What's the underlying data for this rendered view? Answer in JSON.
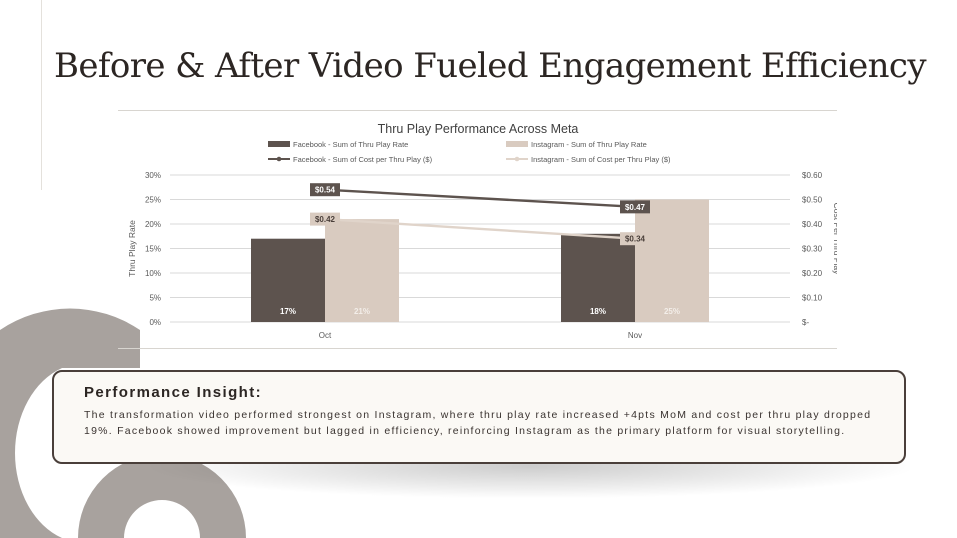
{
  "page": {
    "title": "Before & After Video Fueled Engagement Efficiency"
  },
  "insight": {
    "title": "Performance Insight:",
    "body": "The transformation video performed strongest on Instagram, where thru play rate increased +4pts MoM and cost per thru play dropped 19%. Facebook showed improvement but lagged in efficiency, reinforcing Instagram as the primary platform for visual storytelling."
  },
  "colors": {
    "facebook": "#5d534e",
    "instagram": "#d9cbc0",
    "facebook_line": "#5d534e",
    "instagram_line": "#e0d4ca",
    "grid": "#d9d9d9",
    "axis_text": "#595959",
    "title_text": "#404040",
    "decoration": "#a8a29e"
  },
  "chart_data": {
    "type": "bar",
    "title": "Thru Play Performance Across Meta",
    "categories": [
      "Oct",
      "Nov"
    ],
    "ylabel": "Thru Play Rate",
    "y2label": "Cost Per Thru Play",
    "ylim": [
      0,
      30
    ],
    "y2lim": [
      0,
      0.6
    ],
    "yticks": [
      "0%",
      "5%",
      "10%",
      "15%",
      "20%",
      "25%",
      "30%"
    ],
    "y2ticks": [
      "$-",
      "$0.10",
      "$0.20",
      "$0.30",
      "$0.40",
      "$0.50",
      "$0.60"
    ],
    "grid": true,
    "legend_position": "top",
    "series": [
      {
        "name": "Facebook - Sum of Thru Play Rate",
        "kind": "bar",
        "axis": "left",
        "values": [
          17,
          18
        ],
        "labels": [
          "17%",
          "18%"
        ]
      },
      {
        "name": "Instagram - Sum of Thru Play Rate",
        "kind": "bar",
        "axis": "left",
        "values": [
          21,
          25
        ],
        "labels": [
          "21%",
          "25%"
        ]
      },
      {
        "name": "Facebook - Sum of Cost per Thru Play ($)",
        "kind": "line",
        "axis": "right",
        "values": [
          0.54,
          0.47
        ],
        "labels": [
          "$0.54",
          "$0.47"
        ]
      },
      {
        "name": "Instagram - Sum of Cost per Thru Play ($)",
        "kind": "line",
        "axis": "right",
        "values": [
          0.42,
          0.34
        ],
        "labels": [
          "$0.42",
          "$0.34"
        ]
      }
    ]
  }
}
